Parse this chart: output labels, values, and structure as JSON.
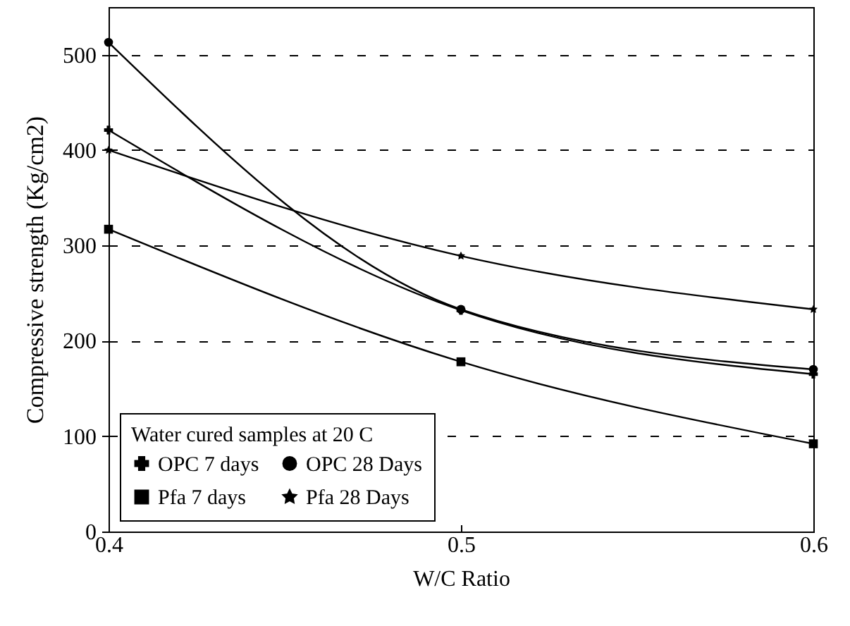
{
  "chart_data": {
    "type": "line",
    "xlabel": "W/C Ratio",
    "ylabel": "Compressive strength (Kg/cm2)",
    "legend_title": "Water cured samples at 20 C",
    "x": [
      0.4,
      0.5,
      0.6
    ],
    "series": [
      {
        "name": "OPC 7 days",
        "color": "#000000",
        "marker": "cross",
        "values": [
          421,
          232,
          165
        ]
      },
      {
        "name": "Pfa 7 days",
        "color": "#000000",
        "marker": "square",
        "values": [
          317,
          178,
          92
        ]
      },
      {
        "name": "OPC 28 Days",
        "color": "#000000",
        "marker": "circle",
        "values": [
          513,
          233,
          170
        ]
      },
      {
        "name": "Pfa 28 Days",
        "color": "#000000",
        "marker": "star",
        "values": [
          400,
          289,
          233
        ]
      }
    ],
    "xlim": [
      0.4,
      0.6
    ],
    "xticks": [
      0.4,
      0.5,
      0.6
    ],
    "ylim": [
      0,
      550
    ],
    "yticks": [
      0,
      100,
      200,
      300,
      400,
      500
    ],
    "grid": "y",
    "legend": "bottom left",
    "line_style": "solid"
  }
}
